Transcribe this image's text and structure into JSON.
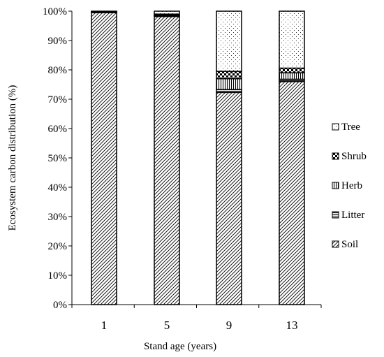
{
  "chart_data": {
    "type": "bar",
    "stacked": true,
    "percent": true,
    "categories": [
      "1",
      "5",
      "9",
      "13"
    ],
    "series": [
      {
        "name": "Soil",
        "pattern": "diag",
        "values": [
          99.5,
          98.2,
          72.3,
          76.0
        ]
      },
      {
        "name": "Litter",
        "pattern": "hlines",
        "values": [
          0.2,
          0.3,
          1.0,
          0.8
        ]
      },
      {
        "name": "Herb",
        "pattern": "vlines",
        "values": [
          0.1,
          0.2,
          3.7,
          2.2
        ]
      },
      {
        "name": "Shrub",
        "pattern": "check",
        "values": [
          0.1,
          0.3,
          2.5,
          1.6
        ]
      },
      {
        "name": "Tree",
        "pattern": "dots",
        "values": [
          0.1,
          1.0,
          20.5,
          19.4
        ]
      }
    ],
    "legend_order": [
      "Tree",
      "Shrub",
      "Herb",
      "Litter",
      "Soil"
    ],
    "xlabel": "Stand age (years)",
    "ylabel": "Ecosystem carbon distribution (%)",
    "ylim": [
      0,
      100
    ],
    "yticks": [
      "0%",
      "10%",
      "20%",
      "30%",
      "40%",
      "50%",
      "60%",
      "70%",
      "80%",
      "90%",
      "100%"
    ],
    "grid": false,
    "legend_position": "right"
  }
}
